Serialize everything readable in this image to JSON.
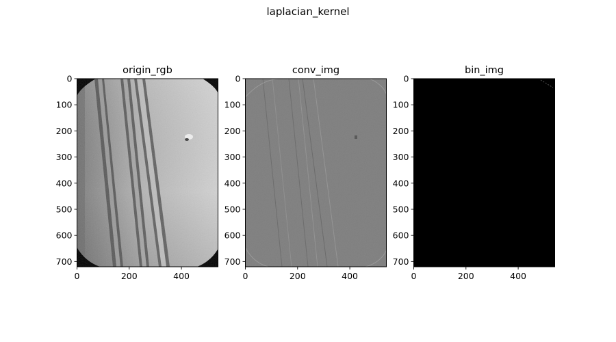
{
  "figure": {
    "suptitle": "laplacian_kernel"
  },
  "chart_data": [
    {
      "type": "image",
      "title": "origin_rgb",
      "cmap": "gray",
      "xlim": [
        0,
        540
      ],
      "ylim": [
        720,
        0
      ],
      "xticks": [
        0,
        200,
        400
      ],
      "yticks": [
        0,
        100,
        200,
        300,
        400,
        500,
        600,
        700
      ]
    },
    {
      "type": "image",
      "title": "conv_img",
      "cmap": "gray",
      "xlim": [
        0,
        540
      ],
      "ylim": [
        720,
        0
      ],
      "xticks": [
        0,
        200,
        400
      ],
      "yticks": [
        0,
        100,
        200,
        300,
        400,
        500,
        600,
        700
      ]
    },
    {
      "type": "image",
      "title": "bin_img",
      "cmap": "gray",
      "xlim": [
        0,
        540
      ],
      "ylim": [
        720,
        0
      ],
      "xticks": [
        0,
        200,
        400
      ],
      "yticks": [
        0,
        100,
        200,
        300,
        400,
        500,
        600,
        700
      ]
    }
  ]
}
